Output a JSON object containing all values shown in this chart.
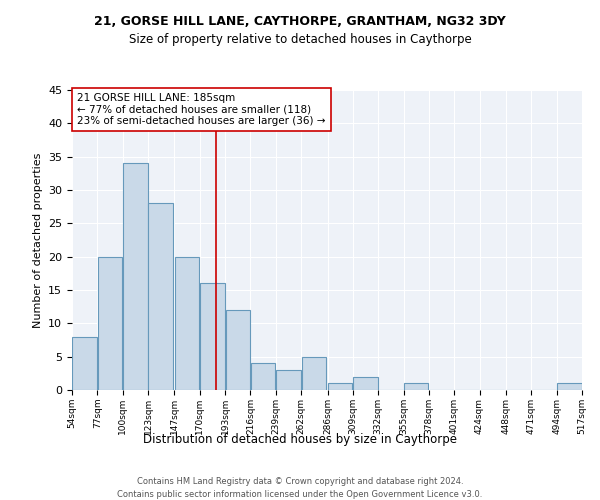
{
  "title1": "21, GORSE HILL LANE, CAYTHORPE, GRANTHAM, NG32 3DY",
  "title2": "Size of property relative to detached houses in Caythorpe",
  "xlabel": "Distribution of detached houses by size in Caythorpe",
  "ylabel": "Number of detached properties",
  "footer1": "Contains HM Land Registry data © Crown copyright and database right 2024.",
  "footer2": "Contains public sector information licensed under the Open Government Licence v3.0.",
  "bin_edges": [
    54,
    77,
    100,
    123,
    147,
    170,
    193,
    216,
    239,
    262,
    286,
    309,
    332,
    355,
    378,
    401,
    424,
    448,
    471,
    494,
    517
  ],
  "bar_values": [
    8,
    20,
    34,
    28,
    20,
    16,
    12,
    4,
    3,
    5,
    1,
    2,
    0,
    1,
    0,
    0,
    0,
    0,
    0,
    1
  ],
  "bar_color": "#c9d9e8",
  "bar_edge_color": "#6699bb",
  "property_size": 185,
  "red_line_color": "#cc0000",
  "annotation_line1": "21 GORSE HILL LANE: 185sqm",
  "annotation_line2": "← 77% of detached houses are smaller (118)",
  "annotation_line3": "23% of semi-detached houses are larger (36) →",
  "annotation_box_color": "#ffffff",
  "annotation_box_edge_color": "#cc0000",
  "background_color": "#eef2f8",
  "ylim": [
    0,
    45
  ],
  "yticks": [
    0,
    5,
    10,
    15,
    20,
    25,
    30,
    35,
    40,
    45
  ]
}
